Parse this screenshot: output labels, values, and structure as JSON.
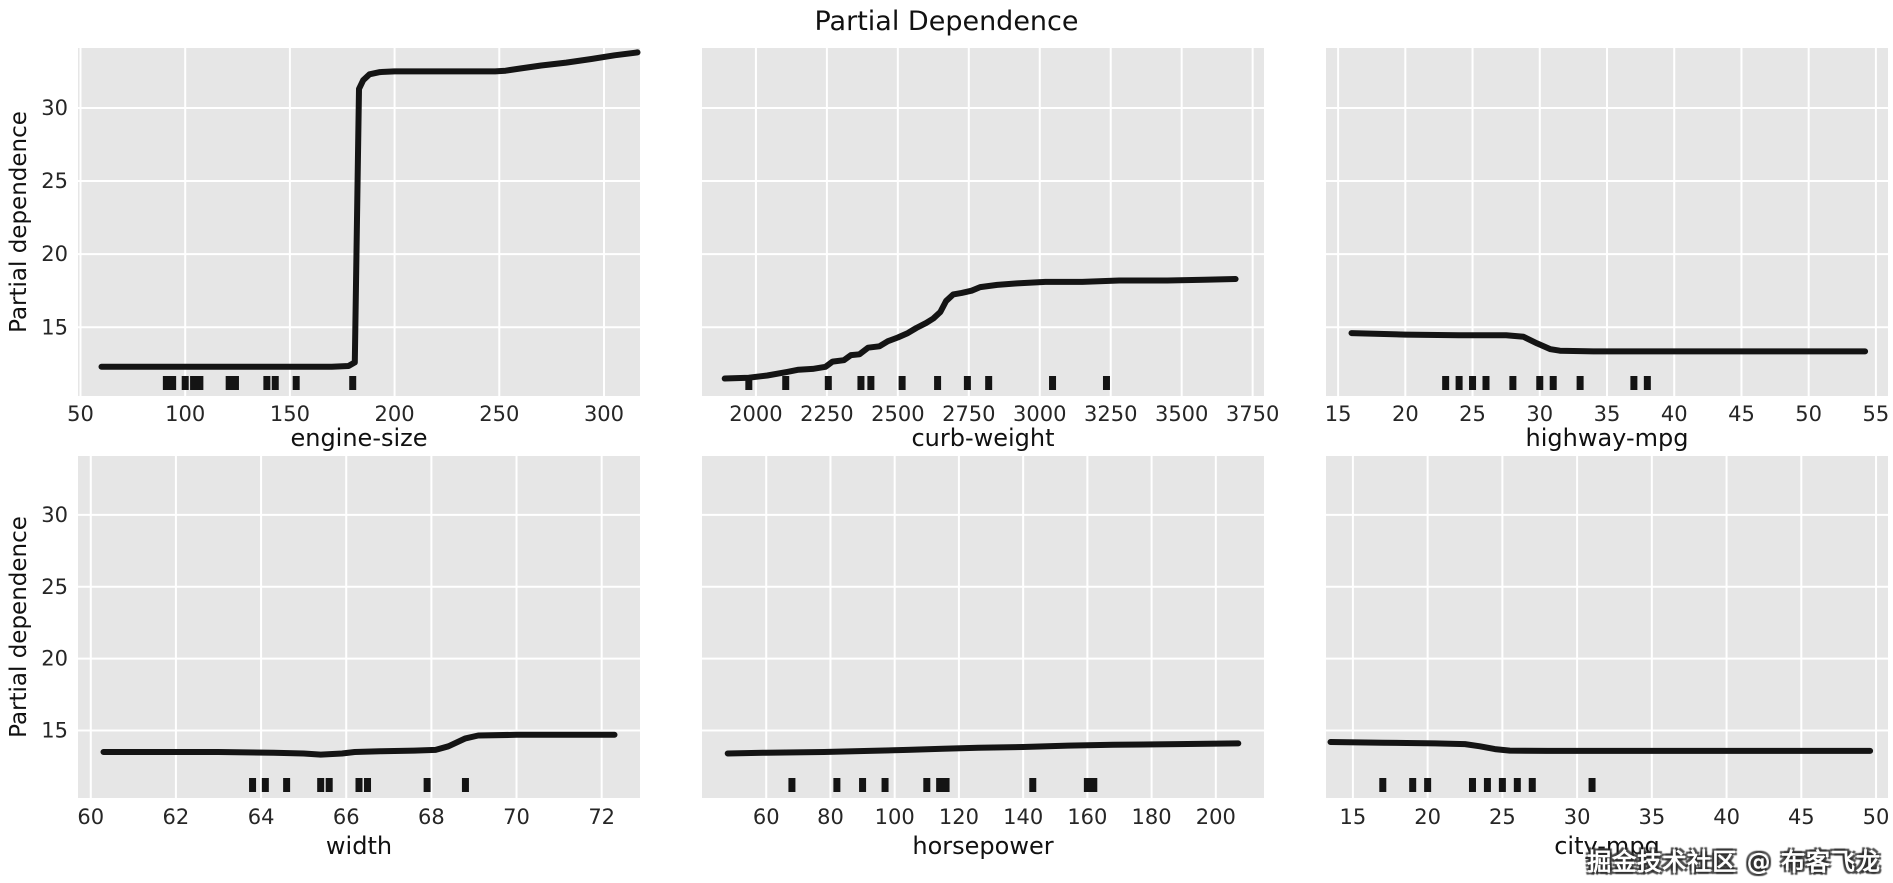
{
  "title": "Partial Dependence",
  "watermark": "掘金技术社区 @ 布客飞龙",
  "style": {
    "axes_bg": "#e6e6e6",
    "grid_color": "#ffffff",
    "line_color": "#141414",
    "rug_color": "#141414",
    "tick_text_color": "#262626",
    "label_text_color": "#111111"
  },
  "chart_data": [
    {
      "id": "engine-size",
      "type": "line",
      "xlabel": "engine-size",
      "ylabel": "Partial dependence",
      "show_ytick_labels": true,
      "xlim": [
        48.8,
        317.2
      ],
      "ylim": [
        10.3,
        34.1
      ],
      "xticks": [
        50,
        100,
        150,
        200,
        250,
        300
      ],
      "yticks": [
        15,
        20,
        25,
        30
      ],
      "line": [
        [
          60,
          12.3
        ],
        [
          120,
          12.3
        ],
        [
          170,
          12.3
        ],
        [
          178,
          12.35
        ],
        [
          181,
          12.6
        ],
        [
          183,
          31.3
        ],
        [
          185,
          31.9
        ],
        [
          188,
          32.3
        ],
        [
          193,
          32.45
        ],
        [
          200,
          32.5
        ],
        [
          248,
          32.5
        ],
        [
          253,
          32.55
        ],
        [
          260,
          32.7
        ],
        [
          270,
          32.9
        ],
        [
          282,
          33.1
        ],
        [
          294,
          33.35
        ],
        [
          305,
          33.6
        ],
        [
          316,
          33.8
        ]
      ],
      "rug": [
        91,
        94,
        100,
        104,
        107,
        121,
        124,
        139,
        143,
        153,
        180
      ]
    },
    {
      "id": "curb-weight",
      "type": "line",
      "xlabel": "curb-weight",
      "ylabel": "",
      "show_ytick_labels": false,
      "xlim": [
        1810,
        3790
      ],
      "ylim": [
        10.3,
        34.1
      ],
      "xticks": [
        2000,
        2250,
        2500,
        2750,
        3000,
        3250,
        3500,
        3750
      ],
      "yticks": [
        15,
        20,
        25,
        30
      ],
      "line": [
        [
          1890,
          11.5
        ],
        [
          1975,
          11.55
        ],
        [
          2040,
          11.7
        ],
        [
          2110,
          11.95
        ],
        [
          2150,
          12.1
        ],
        [
          2200,
          12.15
        ],
        [
          2245,
          12.3
        ],
        [
          2270,
          12.65
        ],
        [
          2310,
          12.75
        ],
        [
          2335,
          13.1
        ],
        [
          2365,
          13.15
        ],
        [
          2395,
          13.6
        ],
        [
          2435,
          13.7
        ],
        [
          2465,
          14.05
        ],
        [
          2500,
          14.3
        ],
        [
          2535,
          14.6
        ],
        [
          2565,
          14.95
        ],
        [
          2600,
          15.3
        ],
        [
          2625,
          15.6
        ],
        [
          2650,
          16.05
        ],
        [
          2670,
          16.8
        ],
        [
          2695,
          17.25
        ],
        [
          2725,
          17.35
        ],
        [
          2760,
          17.5
        ],
        [
          2790,
          17.75
        ],
        [
          2850,
          17.9
        ],
        [
          2920,
          18.0
        ],
        [
          3020,
          18.1
        ],
        [
          3150,
          18.1
        ],
        [
          3280,
          18.2
        ],
        [
          3450,
          18.2
        ],
        [
          3580,
          18.25
        ],
        [
          3690,
          18.3
        ]
      ],
      "rug": [
        1975,
        2105,
        2255,
        2370,
        2405,
        2515,
        2640,
        2745,
        2820,
        3045,
        3235
      ]
    },
    {
      "id": "highway-mpg",
      "type": "line",
      "xlabel": "highway-mpg",
      "ylabel": "",
      "show_ytick_labels": false,
      "xlim": [
        14.1,
        55.9
      ],
      "ylim": [
        10.3,
        34.1
      ],
      "xticks": [
        15,
        20,
        25,
        30,
        35,
        40,
        45,
        50,
        55
      ],
      "yticks": [
        15,
        20,
        25,
        30
      ],
      "line": [
        [
          16,
          14.6
        ],
        [
          20,
          14.5
        ],
        [
          24,
          14.45
        ],
        [
          27.5,
          14.45
        ],
        [
          28.8,
          14.35
        ],
        [
          29.8,
          13.9
        ],
        [
          30.8,
          13.5
        ],
        [
          31.5,
          13.4
        ],
        [
          34,
          13.35
        ],
        [
          54.2,
          13.35
        ]
      ],
      "rug": [
        23,
        24,
        25,
        26,
        28,
        30,
        31,
        33,
        37,
        38
      ]
    },
    {
      "id": "width",
      "type": "line",
      "xlabel": "width",
      "ylabel": "Partial dependence",
      "show_ytick_labels": true,
      "xlim": [
        59.7,
        72.9
      ],
      "ylim": [
        10.3,
        34.1
      ],
      "xticks": [
        60,
        62,
        64,
        66,
        68,
        70,
        72
      ],
      "yticks": [
        15,
        20,
        25,
        30
      ],
      "line": [
        [
          60.3,
          13.5
        ],
        [
          63,
          13.5
        ],
        [
          64.3,
          13.45
        ],
        [
          65,
          13.4
        ],
        [
          65.4,
          13.32
        ],
        [
          65.9,
          13.4
        ],
        [
          66.2,
          13.5
        ],
        [
          66.8,
          13.55
        ],
        [
          67.6,
          13.6
        ],
        [
          68.1,
          13.65
        ],
        [
          68.4,
          13.9
        ],
        [
          68.8,
          14.45
        ],
        [
          69.1,
          14.65
        ],
        [
          70,
          14.7
        ],
        [
          72.3,
          14.7
        ]
      ],
      "rug": [
        63.8,
        64.1,
        64.6,
        65.4,
        65.6,
        66.3,
        66.5,
        67.9,
        68.8
      ]
    },
    {
      "id": "horsepower",
      "type": "line",
      "xlabel": "horsepower",
      "ylabel": "",
      "show_ytick_labels": false,
      "xlim": [
        40,
        215
      ],
      "ylim": [
        10.3,
        34.1
      ],
      "xticks": [
        60,
        80,
        100,
        120,
        140,
        160,
        180,
        200
      ],
      "yticks": [
        15,
        20,
        25,
        30
      ],
      "line": [
        [
          48,
          13.4
        ],
        [
          60,
          13.45
        ],
        [
          78,
          13.5
        ],
        [
          92,
          13.58
        ],
        [
          104,
          13.65
        ],
        [
          115,
          13.73
        ],
        [
          126,
          13.8
        ],
        [
          140,
          13.85
        ],
        [
          154,
          13.95
        ],
        [
          168,
          14.0
        ],
        [
          188,
          14.05
        ],
        [
          207,
          14.1
        ]
      ],
      "rug": [
        68,
        82,
        90,
        97,
        110,
        114,
        116,
        143,
        160,
        162
      ]
    },
    {
      "id": "city-mpg",
      "type": "line",
      "xlabel": "city-mpg",
      "ylabel": "",
      "show_ytick_labels": false,
      "xlim": [
        13.2,
        50.8
      ],
      "ylim": [
        10.3,
        34.1
      ],
      "xticks": [
        15,
        20,
        25,
        30,
        35,
        40,
        45,
        50
      ],
      "yticks": [
        15,
        20,
        25,
        30
      ],
      "line": [
        [
          13.5,
          14.2
        ],
        [
          17,
          14.15
        ],
        [
          20.5,
          14.1
        ],
        [
          22.5,
          14.05
        ],
        [
          23.5,
          13.9
        ],
        [
          24.5,
          13.7
        ],
        [
          25.5,
          13.6
        ],
        [
          28,
          13.58
        ],
        [
          49.6,
          13.58
        ]
      ],
      "rug": [
        17,
        19,
        20,
        23,
        24,
        25,
        26,
        27,
        31
      ]
    }
  ]
}
